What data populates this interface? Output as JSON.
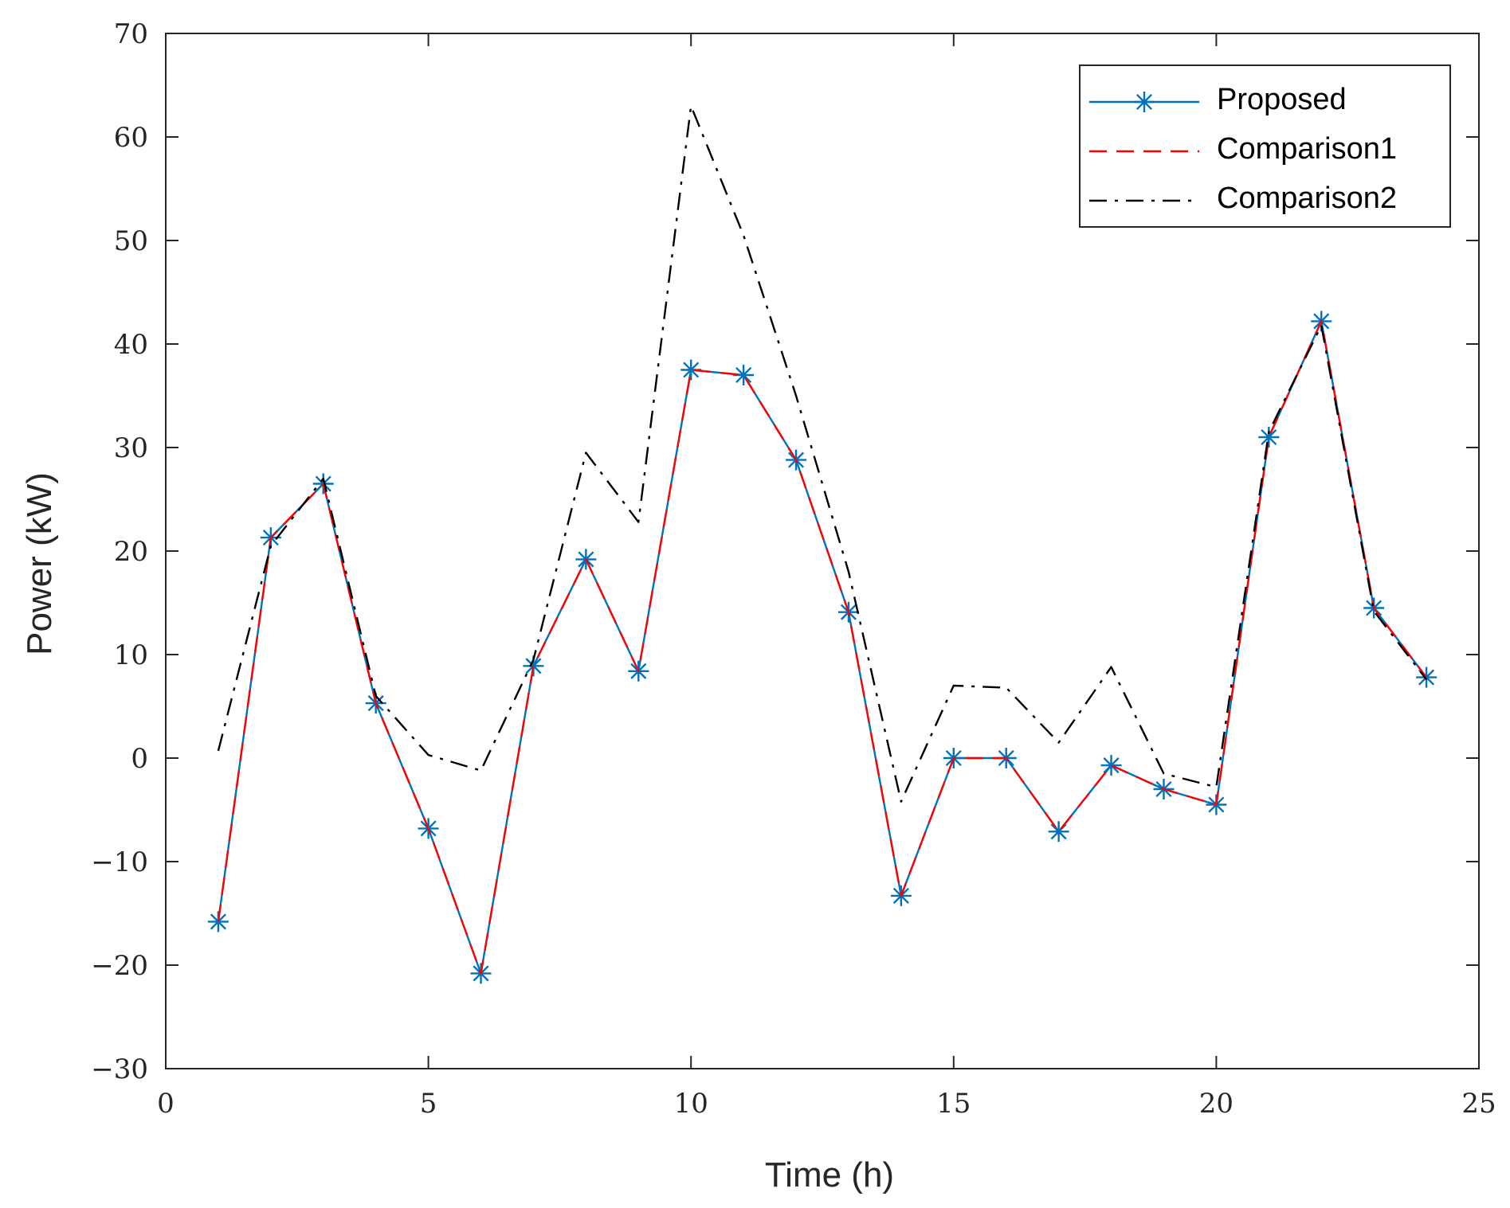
{
  "chart_data": {
    "type": "line",
    "title": "",
    "xlabel": "Time (h)",
    "ylabel": "Power (kW)",
    "xlim": [
      0,
      25
    ],
    "ylim": [
      -30,
      70
    ],
    "xticks": [
      0,
      5,
      10,
      15,
      20,
      25
    ],
    "yticks": [
      -30,
      -20,
      -10,
      0,
      10,
      20,
      30,
      40,
      50,
      60,
      70
    ],
    "xtick_labels": [
      "0",
      "5",
      "10",
      "15",
      "20",
      "25"
    ],
    "ytick_labels": [
      "−30",
      "−20",
      "−10",
      "0",
      "10",
      "20",
      "30",
      "40",
      "50",
      "60",
      "70"
    ],
    "grid": false,
    "legend_position": "top-right",
    "x": [
      1,
      2,
      3,
      4,
      5,
      6,
      7,
      8,
      9,
      10,
      11,
      12,
      13,
      14,
      15,
      16,
      17,
      18,
      19,
      20,
      21,
      22,
      23,
      24
    ],
    "series": [
      {
        "name": "Proposed",
        "color": "#0072BD",
        "style": "solid-star",
        "values": [
          -15.8,
          21.3,
          26.5,
          5.3,
          -6.8,
          -20.8,
          8.9,
          19.2,
          8.4,
          37.5,
          37.0,
          28.8,
          14.1,
          -13.3,
          0,
          0,
          -7.1,
          -0.7,
          -3.0,
          -4.5,
          31.0,
          42.2,
          14.5,
          7.8
        ]
      },
      {
        "name": "Comparison1",
        "color": "#FF0000",
        "style": "dashed",
        "values": [
          -15.8,
          21.3,
          26.5,
          5.3,
          -6.8,
          -20.8,
          8.9,
          19.2,
          8.4,
          37.5,
          37.0,
          28.8,
          14.1,
          -13.3,
          0,
          0,
          -7.1,
          -0.7,
          -3.0,
          -4.5,
          31.0,
          42.2,
          14.5,
          7.8
        ]
      },
      {
        "name": "Comparison2",
        "color": "#000000",
        "style": "dashdot",
        "values": [
          0.7,
          20.5,
          27.0,
          6.0,
          0.3,
          -1.2,
          9.5,
          29.5,
          22.8,
          63.0,
          50.5,
          35.0,
          18.0,
          -4.2,
          7.0,
          6.8,
          1.5,
          8.8,
          -1.5,
          -2.8,
          31.5,
          41.8,
          14.2,
          7.6
        ]
      }
    ]
  }
}
